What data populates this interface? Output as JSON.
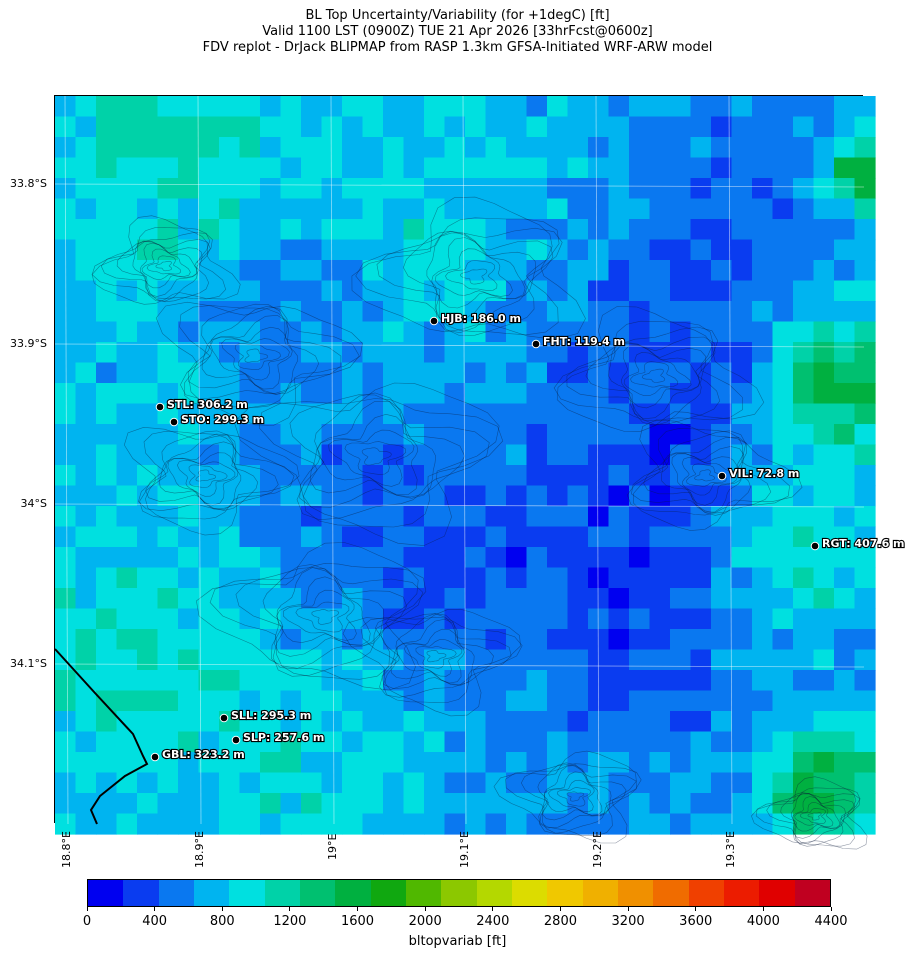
{
  "title": {
    "line1": "BL Top Uncertainty/Variability (for +1degC) [ft]",
    "line2": "Valid 1100 LST (0900Z) TUE 21 Apr 2026 [33hrFcst@0600z]",
    "line3": "FDV replot - DrJack BLIPMAP from RASP 1.3km GFSA-Initiated WRF-ARW model"
  },
  "axes": {
    "lon_ticks": [
      "18.8°E",
      "18.9°E",
      "19°E",
      "19.1°E",
      "19.2°E",
      "19.3°E"
    ],
    "lat_ticks": [
      "33.8°S",
      "33.9°S",
      "34°S",
      "34.1°S"
    ]
  },
  "stations": [
    {
      "code": "HJB",
      "label": "HJB: 186.0 m"
    },
    {
      "code": "FHT",
      "label": "FHT: 119.4 m"
    },
    {
      "code": "STL",
      "label": "STL: 306.2 m"
    },
    {
      "code": "STO",
      "label": "STO: 299.3 m"
    },
    {
      "code": "VIL",
      "label": "VIL: 72.8 m"
    },
    {
      "code": "RGT",
      "label": "RGT: 407.6 m"
    },
    {
      "code": "SLL",
      "label": "SLL: 295.3 m"
    },
    {
      "code": "SLP",
      "label": "SLP: 257.6 m"
    },
    {
      "code": "GBL",
      "label": "GBL: 323.2 m"
    }
  ],
  "colorbar": {
    "title": "bltopvariab [ft]",
    "tick_labels": [
      "0",
      "400",
      "800",
      "1200",
      "1600",
      "2000",
      "2400",
      "2800",
      "3200",
      "3600",
      "4000",
      "4400"
    ],
    "colors": [
      "#0000f0",
      "#0a3cf0",
      "#0a78f0",
      "#00b4f0",
      "#00e0e0",
      "#00d2a8",
      "#00c070",
      "#00b040",
      "#10a810",
      "#50b800",
      "#8cc800",
      "#b4d800",
      "#dcdc00",
      "#f0c800",
      "#f0b000",
      "#f09000",
      "#f06c00",
      "#f04000",
      "#ec1c00",
      "#e00000",
      "#c00020"
    ]
  }
}
